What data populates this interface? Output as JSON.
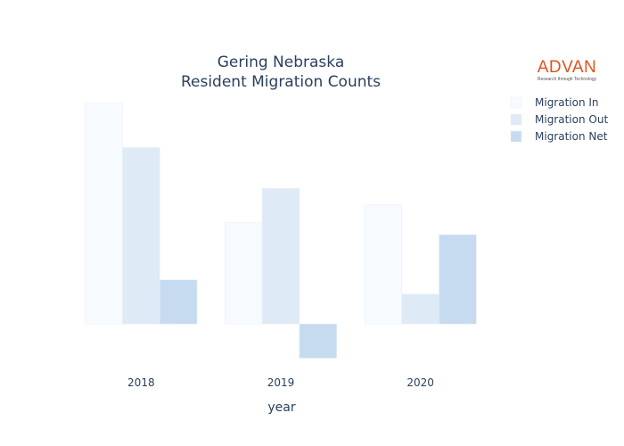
{
  "chart_data": {
    "type": "bar",
    "title_lines": [
      "Gering Nebraska",
      "Resident Migration Counts"
    ],
    "xlabel": "year",
    "ylabel": "",
    "categories": [
      "2018",
      "2019",
      "2020"
    ],
    "series": [
      {
        "name": "Migration In",
        "values": [
          1000,
          460,
          540
        ],
        "color": "#f7fbff"
      },
      {
        "name": "Migration Out",
        "values": [
          800,
          615,
          135
        ],
        "color": "#deebf7"
      },
      {
        "name": "Migration Net",
        "values": [
          200,
          -155,
          405
        ],
        "color": "#c6dbef"
      }
    ],
    "ylim": [
      -165,
      1000
    ],
    "grid": false,
    "legend_position": "top-right"
  },
  "logo": {
    "word": "ADVAN",
    "tagline": "Research through Technology",
    "color": "#e0531f"
  }
}
